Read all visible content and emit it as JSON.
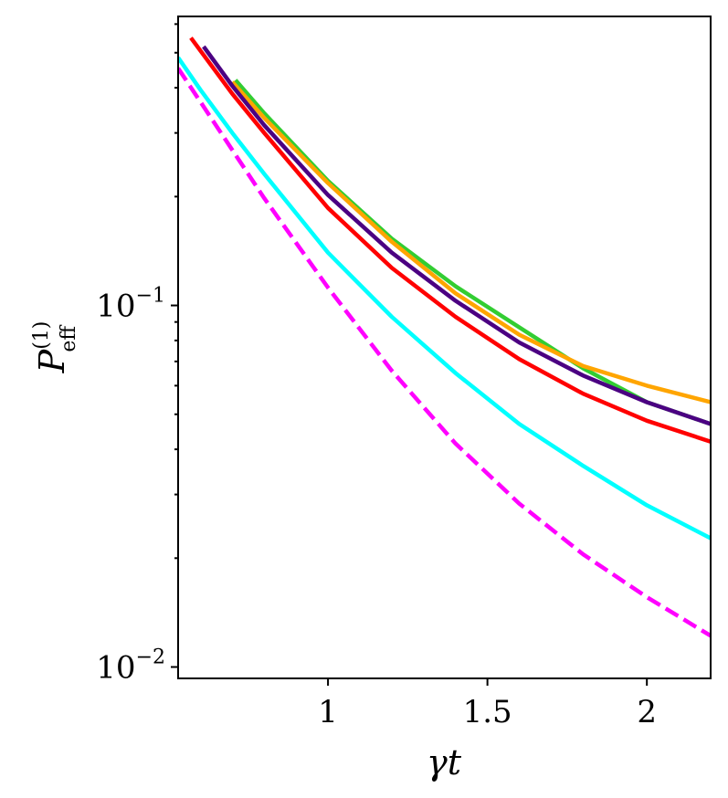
{
  "chart_data": {
    "type": "line",
    "xlabel": "γt",
    "ylabel": {
      "main": "P",
      "superscript": "(1)",
      "subscript": "eff"
    },
    "xlim": [
      0.53,
      2.2
    ],
    "ylim": [
      0.0093,
      0.63
    ],
    "yscale": "log",
    "grid": false,
    "xticks": [
      {
        "value": 1,
        "label": "1"
      },
      {
        "value": 1.5,
        "label": "1.5"
      },
      {
        "value": 2,
        "label": "2"
      }
    ],
    "yticks": [
      {
        "value": 0.1,
        "base": "10",
        "exp": "−1"
      },
      {
        "value": 0.01,
        "base": "10",
        "exp": "−2"
      }
    ],
    "series": [
      {
        "color": "#32cd32",
        "dash": "solid",
        "x": [
          0.71,
          0.8,
          1.0,
          1.2,
          1.4,
          1.6,
          1.8,
          2.0,
          2.2
        ],
        "y": [
          0.42,
          0.34,
          0.221,
          0.153,
          0.113,
          0.087,
          0.067,
          0.054,
          0.047
        ]
      },
      {
        "color": "#ffa500",
        "dash": "solid",
        "x": [
          0.7,
          0.8,
          1.0,
          1.2,
          1.4,
          1.6,
          1.8,
          2.0,
          2.2
        ],
        "y": [
          0.415,
          0.33,
          0.218,
          0.15,
          0.108,
          0.083,
          0.068,
          0.06,
          0.054
        ]
      },
      {
        "color": "#4b0082",
        "dash": "solid",
        "x": [
          0.61,
          0.7,
          0.8,
          1.0,
          1.2,
          1.4,
          1.6,
          1.8,
          2.0,
          2.2
        ],
        "y": [
          0.52,
          0.405,
          0.315,
          0.202,
          0.14,
          0.103,
          0.079,
          0.064,
          0.054,
          0.047
        ]
      },
      {
        "color": "#ff0000",
        "dash": "solid",
        "x": [
          0.57,
          0.7,
          0.8,
          1.0,
          1.2,
          1.4,
          1.6,
          1.8,
          2.0,
          2.2
        ],
        "y": [
          0.55,
          0.385,
          0.3,
          0.186,
          0.127,
          0.093,
          0.071,
          0.057,
          0.048,
          0.042
        ]
      },
      {
        "color": "#00ffff",
        "dash": "solid",
        "x": [
          0.53,
          0.6,
          0.7,
          0.8,
          1.0,
          1.2,
          1.4,
          1.6,
          1.8,
          2.0,
          2.2
        ],
        "y": [
          0.485,
          0.395,
          0.3,
          0.231,
          0.14,
          0.093,
          0.065,
          0.047,
          0.036,
          0.028,
          0.0227
        ]
      },
      {
        "color": "#ff00ff",
        "dash": "dashed",
        "x": [
          0.53,
          0.8,
          1.0,
          1.2,
          1.4,
          1.6,
          1.8,
          2.0,
          2.2
        ],
        "y": [
          0.453,
          0.198,
          0.112,
          0.066,
          0.0415,
          0.0283,
          0.0205,
          0.0156,
          0.0122
        ]
      }
    ]
  }
}
